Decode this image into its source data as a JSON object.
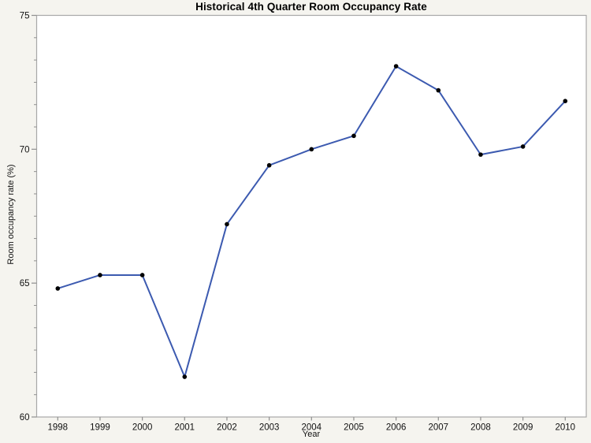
{
  "chart_data": {
    "type": "line",
    "title": "Historical 4th Quarter Room Occupancy Rate",
    "xlabel": "Year",
    "ylabel": "Room occupancy rate (%)",
    "x": [
      1998,
      1999,
      2000,
      2001,
      2002,
      2003,
      2004,
      2005,
      2006,
      2007,
      2008,
      2009,
      2010
    ],
    "series": [
      {
        "name": "Room occupancy rate",
        "values": [
          64.8,
          65.3,
          65.3,
          61.5,
          67.2,
          69.4,
          70.0,
          70.5,
          73.1,
          72.2,
          69.8,
          70.1,
          71.8
        ]
      }
    ],
    "ylim": [
      60,
      75
    ],
    "yticks": [
      60,
      65,
      70,
      75
    ],
    "y_minor_ticks_per_interval": 5,
    "grid": false,
    "legend_position": "none",
    "colors": {
      "line": "#3c5ab0",
      "marker": "#000000",
      "frame": "#a8a8a8",
      "canvas_bg": "#f5f4ef",
      "plot_bg": "#ffffff",
      "tick": "#8f8f8f"
    }
  }
}
